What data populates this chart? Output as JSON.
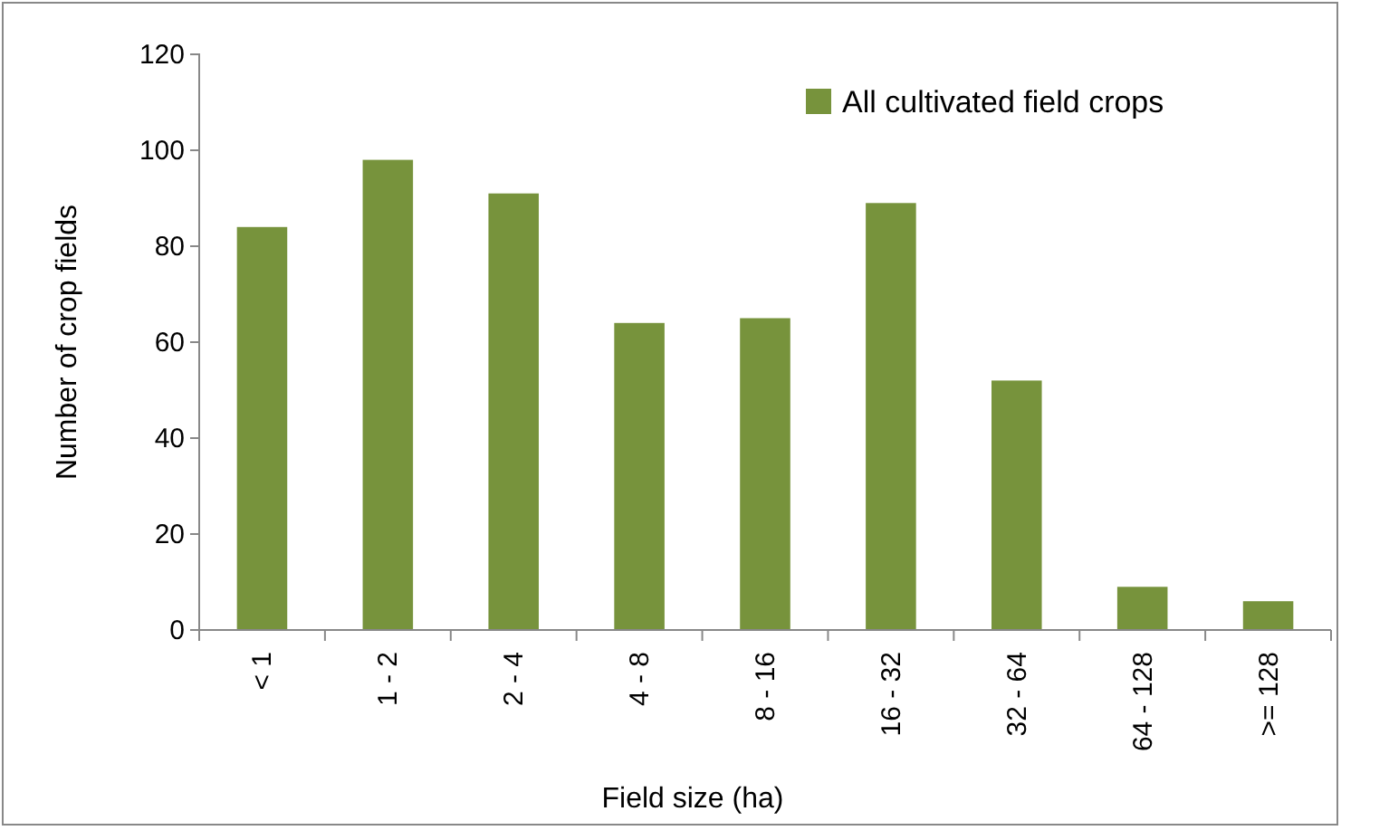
{
  "chart_data": {
    "type": "bar",
    "xlabel": "Field size (ha)",
    "ylabel": "Number of crop fields",
    "categories": [
      "< 1",
      "1 - 2",
      "2 - 4",
      "4 - 8",
      "8 - 16",
      "16 - 32",
      "32 - 64",
      "64 - 128",
      ">= 128"
    ],
    "series": [
      {
        "name": "All cultivated  field crops",
        "color": "#77933c",
        "values": [
          84,
          98,
          91,
          64,
          65,
          89,
          52,
          9,
          6
        ]
      }
    ],
    "ylim": [
      0,
      120
    ],
    "yticks": [
      0,
      20,
      40,
      60,
      80,
      100,
      120
    ],
    "grid": false,
    "legend": "top right"
  }
}
